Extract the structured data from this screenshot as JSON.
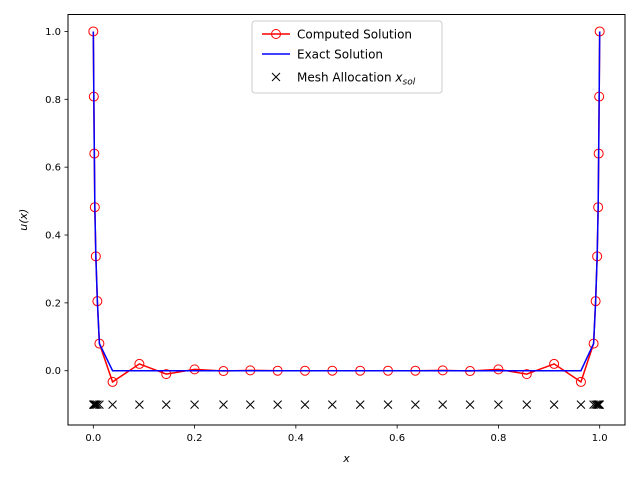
{
  "chart_data": {
    "type": "line",
    "xlabel": "x",
    "ylabel": "u(x)",
    "xlim": [
      -0.05,
      1.05
    ],
    "ylim": [
      -0.16,
      1.05
    ],
    "xticks": [
      "0.0",
      "0.2",
      "0.4",
      "0.6",
      "0.8",
      "1.0"
    ],
    "yticks": [
      "0.0",
      "0.2",
      "0.4",
      "0.6",
      "0.8",
      "1.0"
    ],
    "legend_position": "top-center",
    "colors": {
      "computed": "#ff0000",
      "exact": "#0000ff",
      "mesh": "#000000"
    },
    "series": [
      {
        "name": "Computed Solution",
        "marker": "open-circle",
        "x": [
          0.0,
          0.001,
          0.002,
          0.003,
          0.005,
          0.008,
          0.012,
          0.038,
          0.091,
          0.144,
          0.2,
          0.257,
          0.31,
          0.364,
          0.418,
          0.472,
          0.527,
          0.582,
          0.636,
          0.69,
          0.744,
          0.8,
          0.856,
          0.91,
          0.963,
          0.988,
          0.992,
          0.995,
          0.997,
          0.998,
          0.999,
          1.0
        ],
        "y": [
          1.0,
          0.808,
          0.64,
          0.482,
          0.337,
          0.205,
          0.08,
          -0.033,
          0.02,
          -0.01,
          0.004,
          -0.001,
          0.001,
          0.0,
          0.0,
          0.0,
          0.0,
          0.0,
          0.0,
          0.001,
          -0.001,
          0.004,
          -0.01,
          0.02,
          -0.033,
          0.08,
          0.205,
          0.337,
          0.482,
          0.64,
          0.808,
          1.0
        ]
      },
      {
        "name": "Exact Solution",
        "x": [
          0.0,
          0.001,
          0.002,
          0.003,
          0.005,
          0.008,
          0.012,
          0.038,
          0.091,
          0.144,
          0.2,
          0.257,
          0.31,
          0.364,
          0.418,
          0.472,
          0.527,
          0.582,
          0.636,
          0.69,
          0.744,
          0.8,
          0.856,
          0.91,
          0.963,
          0.988,
          0.992,
          0.995,
          0.997,
          0.998,
          0.999,
          1.0
        ],
        "y": [
          1.0,
          0.808,
          0.64,
          0.482,
          0.337,
          0.205,
          0.08,
          0.0,
          0.0,
          0.0,
          0.0,
          0.0,
          0.0,
          0.0,
          0.0,
          0.0,
          0.0,
          0.0,
          0.0,
          0.0,
          0.0,
          0.0,
          0.0,
          0.0,
          0.0,
          0.08,
          0.205,
          0.337,
          0.482,
          0.64,
          0.808,
          1.0
        ]
      },
      {
        "name": "Mesh Allocation",
        "name_subscript": "sol",
        "marker": "x",
        "x": [
          0.0,
          0.001,
          0.002,
          0.003,
          0.005,
          0.008,
          0.012,
          0.038,
          0.091,
          0.144,
          0.2,
          0.257,
          0.31,
          0.364,
          0.418,
          0.472,
          0.527,
          0.582,
          0.636,
          0.69,
          0.744,
          0.8,
          0.856,
          0.91,
          0.963,
          0.988,
          0.992,
          0.995,
          0.997,
          0.998,
          0.999,
          1.0
        ],
        "y_constant": -0.1
      }
    ]
  }
}
